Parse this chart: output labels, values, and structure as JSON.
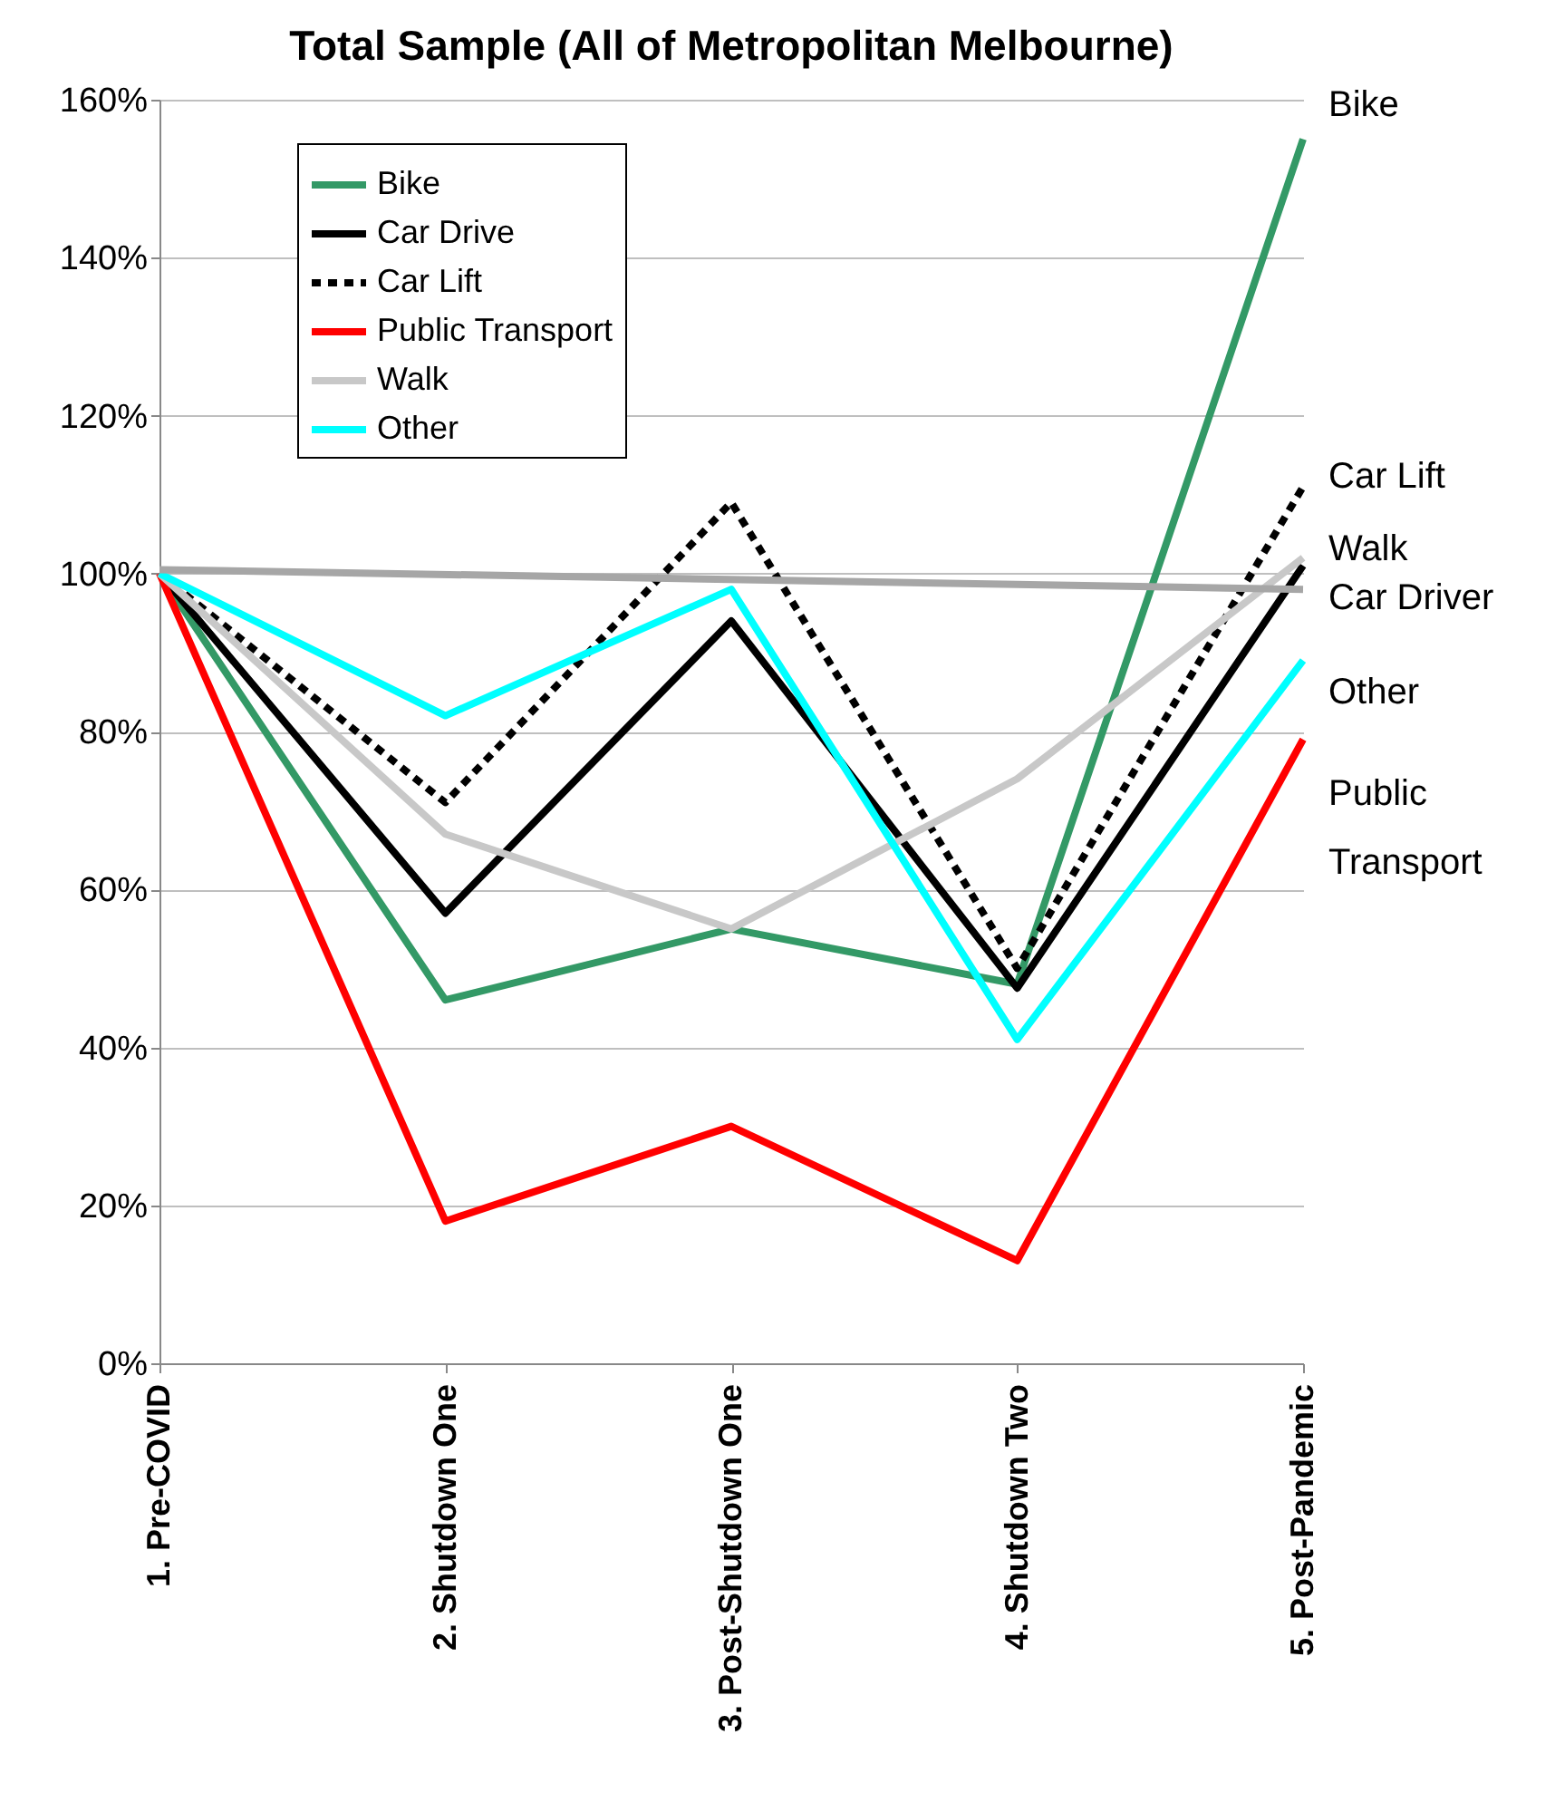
{
  "chart_data": {
    "type": "line",
    "title": "Total Sample (All of Metropolitan Melbourne)",
    "categories": [
      "1. Pre-COVID",
      "2. Shutdown One",
      "3. Post-Shutdown One",
      "4. Shutdown Two",
      "5. Post-Pandemic"
    ],
    "series": [
      {
        "name": "Bike",
        "color": "#339966",
        "values": [
          100,
          46,
          55,
          48,
          155
        ]
      },
      {
        "name": "Car Drive",
        "color": "#000000",
        "values": [
          100,
          57,
          94,
          47.5,
          101
        ]
      },
      {
        "name": "Car Lift",
        "color": "#000000",
        "line_style": "dashed",
        "values": [
          100,
          71,
          109,
          50,
          111
        ]
      },
      {
        "name": "Public Transport",
        "color": "#ff0000",
        "values": [
          100,
          18,
          30,
          13,
          79
        ]
      },
      {
        "name": "Walk",
        "color": "#c8c8c8",
        "values": [
          100,
          67,
          55,
          74,
          102
        ]
      },
      {
        "name": "Other",
        "color": "#00ffff",
        "values": [
          100,
          82,
          98,
          41,
          89
        ]
      },
      {
        "color": "#a6a6a6",
        "x": [
          "1. Pre-COVID",
          "5. Post-Pandemic"
        ],
        "values": [
          100.5,
          98
        ]
      }
    ],
    "ylim": [
      0,
      160
    ],
    "yticks": [
      {
        "value": 0,
        "label": "0%"
      },
      {
        "value": 20,
        "label": "20%"
      },
      {
        "value": 40,
        "label": "40%"
      },
      {
        "value": 60,
        "label": "60%"
      },
      {
        "value": 80,
        "label": "80%"
      },
      {
        "value": 100,
        "label": "100%"
      },
      {
        "value": 120,
        "label": "120%"
      },
      {
        "value": 140,
        "label": "140%"
      },
      {
        "value": 160,
        "label": "160%"
      }
    ],
    "grid": "y",
    "legend": "top left",
    "line_style": "solid",
    "annotations": [
      "Bike",
      "Car Lift",
      "Walk",
      "Car Driver",
      "Other",
      "Public Transport"
    ]
  }
}
